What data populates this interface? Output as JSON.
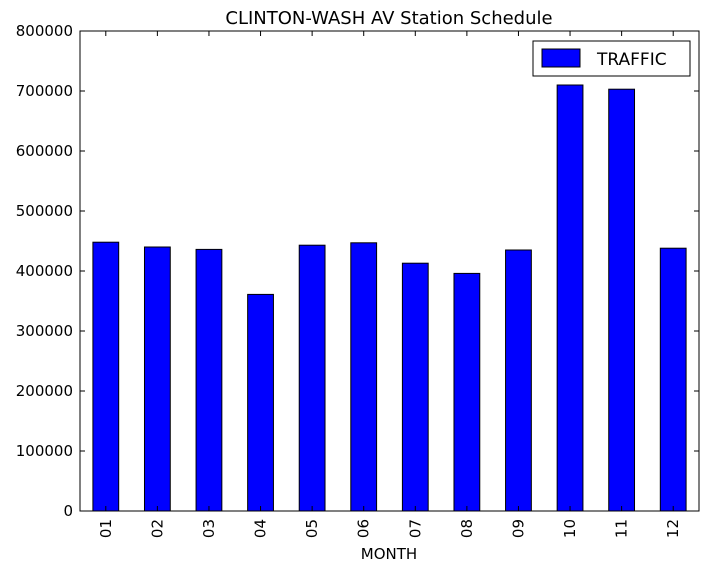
{
  "chart_data": {
    "type": "bar",
    "title": "CLINTON-WASH AV Station Schedule",
    "xlabel": "MONTH",
    "ylabel": "",
    "ylim": [
      0,
      800000
    ],
    "yticks": [
      0,
      100000,
      200000,
      300000,
      400000,
      500000,
      600000,
      700000,
      800000
    ],
    "categories": [
      "01",
      "02",
      "03",
      "04",
      "05",
      "06",
      "07",
      "08",
      "09",
      "10",
      "11",
      "12"
    ],
    "series": [
      {
        "name": "TRAFFIC",
        "color": "#0000ff",
        "values": [
          448000,
          440000,
          436000,
          361000,
          443000,
          447000,
          413000,
          396000,
          435000,
          710000,
          703000,
          438000
        ]
      }
    ],
    "legend": "top-right",
    "grid": false
  }
}
